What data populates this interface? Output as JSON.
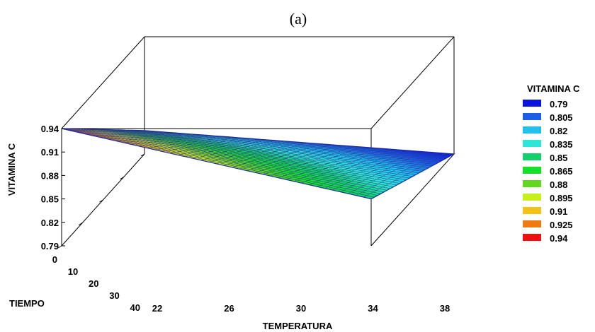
{
  "chart_data": {
    "type": "surface",
    "title": "(a)",
    "xlabel": "TEMPERATURA",
    "ylabel": "TIEMPO",
    "zlabel": "VITAMINA C",
    "x_ticks": [
      22,
      26,
      30,
      34,
      38
    ],
    "y_ticks": [
      0,
      10,
      20,
      30,
      40
    ],
    "z_ticks": [
      0.79,
      0.82,
      0.85,
      0.88,
      0.91,
      0.94
    ],
    "x_range": [
      22,
      38
    ],
    "y_range": [
      0,
      40
    ],
    "z_range": [
      0.79,
      0.94
    ],
    "corners": [
      {
        "temperatura": 22,
        "tiempo": 0,
        "vitamina_c": 0.94
      },
      {
        "temperatura": 38,
        "tiempo": 0,
        "vitamina_c": 0.85
      },
      {
        "temperatura": 22,
        "tiempo": 40,
        "vitamina_c": 0.82
      },
      {
        "temperatura": 38,
        "tiempo": 40,
        "vitamina_c": 0.79
      }
    ],
    "legend": {
      "title": "VITAMINA C",
      "position": "right",
      "entries": [
        {
          "label": "0.79",
          "color": "#0a14e0"
        },
        {
          "label": "0.805",
          "color": "#1a5fe6"
        },
        {
          "label": "0.82",
          "color": "#1fc1f0"
        },
        {
          "label": "0.835",
          "color": "#2ee6d6"
        },
        {
          "label": "0.85",
          "color": "#13d16a"
        },
        {
          "label": "0.865",
          "color": "#14e02a"
        },
        {
          "label": "0.88",
          "color": "#5fd81d"
        },
        {
          "label": "0.895",
          "color": "#c7f01a"
        },
        {
          "label": "0.91",
          "color": "#f0c21a"
        },
        {
          "label": "0.925",
          "color": "#f07a12"
        },
        {
          "label": "0.94",
          "color": "#ee1010"
        }
      ]
    }
  }
}
